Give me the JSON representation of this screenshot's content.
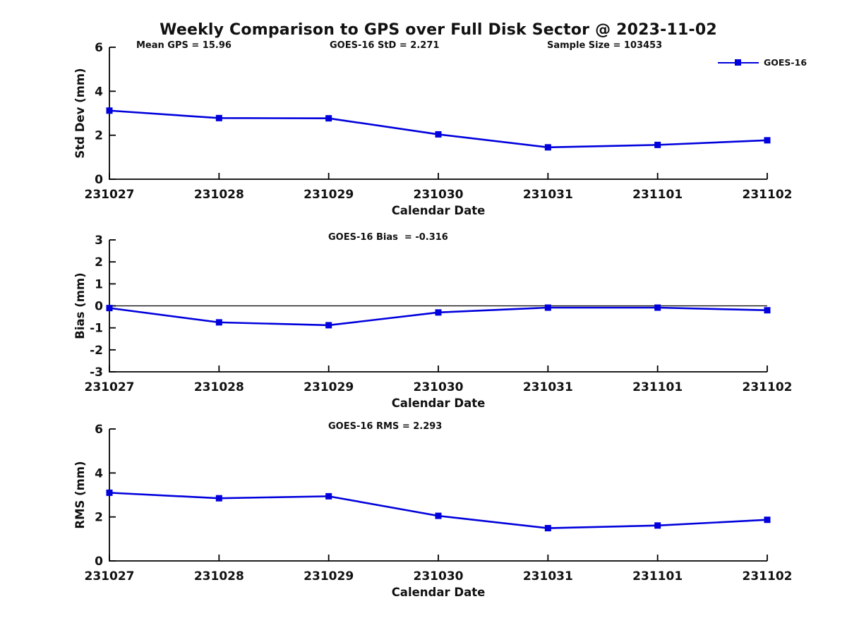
{
  "figure": {
    "title": "Weekly Comparison to GPS over Full Disk Sector @ 2023-11-02",
    "legend": {
      "label": "GOES-16",
      "position": "top-right"
    },
    "colors": {
      "line": "#0000DD",
      "axis": "#000000",
      "text": "#111111",
      "background": "#FFFFFF"
    }
  },
  "chart_data": [
    {
      "type": "line",
      "name": "std-dev-panel",
      "annotations": [
        "Mean GPS = 15.96",
        "GOES-16 StD = 2.271",
        "Sample Size = 103453"
      ],
      "categories": [
        "231027",
        "231028",
        "231029",
        "231030",
        "231031",
        "231101",
        "231102"
      ],
      "series": [
        {
          "name": "GOES-16",
          "values": [
            3.12,
            2.78,
            2.77,
            2.04,
            1.45,
            1.56,
            1.77
          ]
        }
      ],
      "xlabel": "Calendar Date",
      "ylabel": "Std Dev (mm)",
      "ylim": [
        0,
        6
      ],
      "yticks": [
        0,
        2,
        4,
        6
      ],
      "grid": false,
      "zero_line": false,
      "marker": "square"
    },
    {
      "type": "line",
      "name": "bias-panel",
      "annotations": [
        "GOES-16 Bias  = -0.316"
      ],
      "categories": [
        "231027",
        "231028",
        "231029",
        "231030",
        "231031",
        "231101",
        "231102"
      ],
      "series": [
        {
          "name": "GOES-16",
          "values": [
            -0.1,
            -0.75,
            -0.88,
            -0.3,
            -0.08,
            -0.08,
            -0.2
          ]
        }
      ],
      "xlabel": "Calendar Date",
      "ylabel": "Bias (mm)",
      "ylim": [
        -3,
        3
      ],
      "yticks": [
        -3,
        -2,
        -1,
        0,
        1,
        2,
        3
      ],
      "grid": false,
      "zero_line": true,
      "marker": "square"
    },
    {
      "type": "line",
      "name": "rms-panel",
      "annotations": [
        "GOES-16 RMS = 2.293"
      ],
      "categories": [
        "231027",
        "231028",
        "231029",
        "231030",
        "231031",
        "231101",
        "231102"
      ],
      "series": [
        {
          "name": "GOES-16",
          "values": [
            3.1,
            2.85,
            2.94,
            2.05,
            1.49,
            1.61,
            1.87
          ]
        }
      ],
      "xlabel": "Calendar Date",
      "ylabel": "RMS (mm)",
      "ylim": [
        0,
        6
      ],
      "yticks": [
        0,
        2,
        4,
        6
      ],
      "grid": false,
      "zero_line": false,
      "marker": "square"
    }
  ]
}
